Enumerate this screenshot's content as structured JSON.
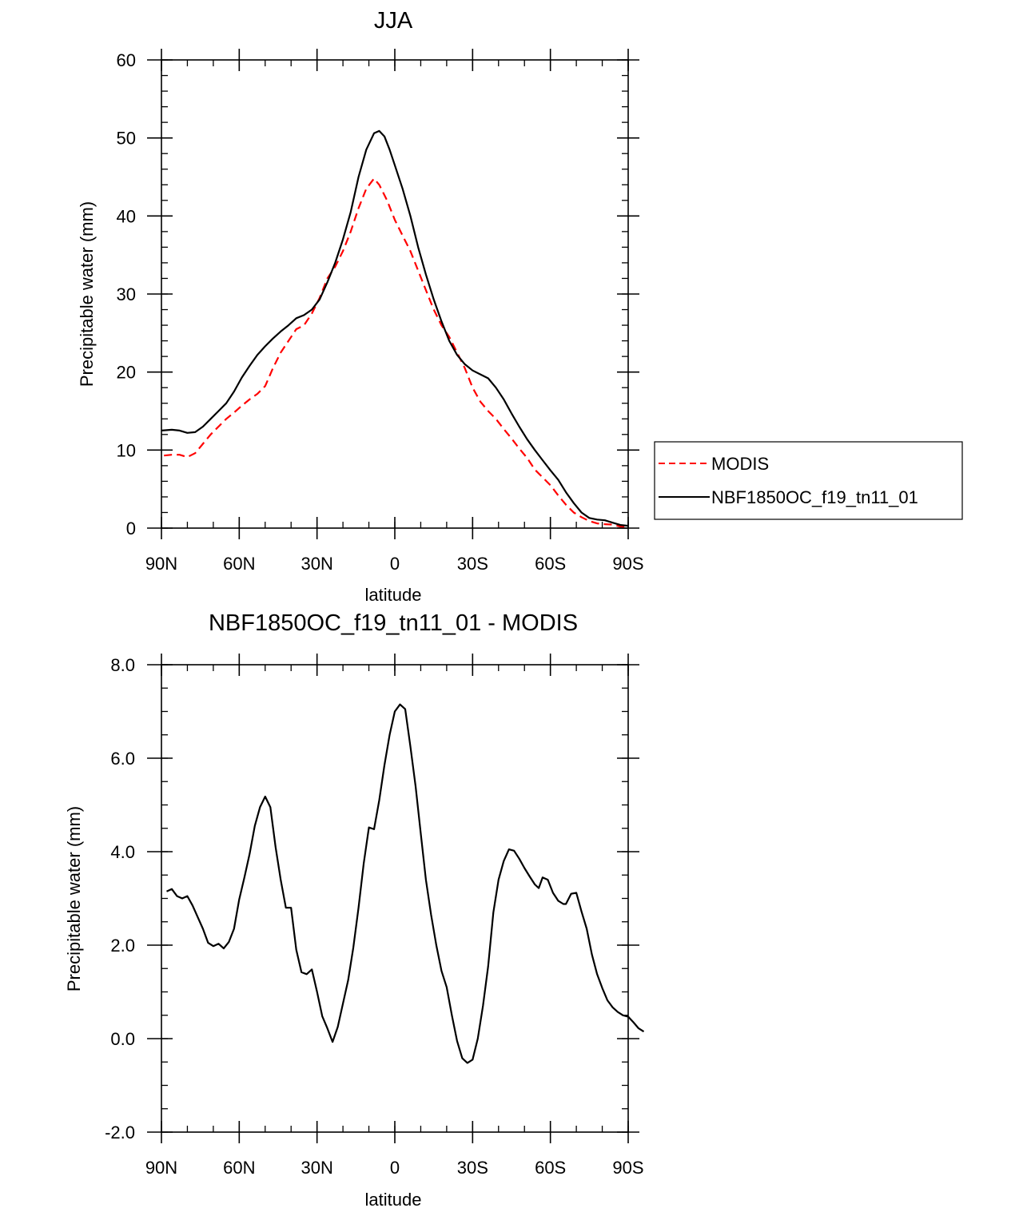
{
  "chart_data": [
    {
      "type": "line",
      "title": "JJA",
      "xlabel": "latitude",
      "ylabel": "Precipitable water (mm)",
      "xlim": [
        90,
        -90
      ],
      "ylim": [
        0,
        60
      ],
      "xticks": [
        {
          "value": 90,
          "label": "90N"
        },
        {
          "value": 60,
          "label": "60N"
        },
        {
          "value": 30,
          "label": "30N"
        },
        {
          "value": 0,
          "label": "0"
        },
        {
          "value": -30,
          "label": "30S"
        },
        {
          "value": -60,
          "label": "60S"
        },
        {
          "value": -90,
          "label": "90S"
        }
      ],
      "yticks": [
        {
          "value": 0,
          "label": "0"
        },
        {
          "value": 10,
          "label": "10"
        },
        {
          "value": 20,
          "label": "20"
        },
        {
          "value": 30,
          "label": "30"
        },
        {
          "value": 40,
          "label": "40"
        },
        {
          "value": 50,
          "label": "50"
        },
        {
          "value": 60,
          "label": "60"
        }
      ],
      "legend_position": "right",
      "series": [
        {
          "name": "MODIS",
          "color": "#ff0000",
          "style": "dashed",
          "points": [
            [
              89,
              9.3
            ],
            [
              86,
              9.4
            ],
            [
              83,
              9.4
            ],
            [
              80,
              9.1
            ],
            [
              77,
              9.6
            ],
            [
              74,
              10.8
            ],
            [
              71,
              12
            ],
            [
              68,
              13
            ],
            [
              65,
              14
            ],
            [
              62,
              14.8
            ],
            [
              59,
              15.7
            ],
            [
              56,
              16.5
            ],
            [
              53,
              17.2
            ],
            [
              50,
              18.2
            ],
            [
              47,
              20.5
            ],
            [
              44,
              22.5
            ],
            [
              41,
              24
            ],
            [
              38,
              25.5
            ],
            [
              35,
              26
            ],
            [
              32,
              27.5
            ],
            [
              29,
              29.5
            ],
            [
              26,
              32
            ],
            [
              23,
              33.5
            ],
            [
              20,
              35.5
            ],
            [
              17,
              38
            ],
            [
              14,
              41
            ],
            [
              11,
              43.5
            ],
            [
              8,
              44.8
            ],
            [
              6,
              44
            ],
            [
              3,
              42
            ],
            [
              0,
              39.5
            ],
            [
              -3,
              37.5
            ],
            [
              -6,
              35.5
            ],
            [
              -9,
              33
            ],
            [
              -12,
              30.5
            ],
            [
              -15,
              28
            ],
            [
              -18,
              26
            ],
            [
              -21,
              24.5
            ],
            [
              -24,
              22.5
            ],
            [
              -27,
              20.5
            ],
            [
              -30,
              18
            ],
            [
              -33,
              16.2
            ],
            [
              -36,
              15
            ],
            [
              -39,
              14
            ],
            [
              -42,
              12.7
            ],
            [
              -45,
              11.5
            ],
            [
              -48,
              10.2
            ],
            [
              -51,
              9
            ],
            [
              -54,
              7.5
            ],
            [
              -57,
              6.5
            ],
            [
              -60,
              5.5
            ],
            [
              -63,
              4.2
            ],
            [
              -66,
              3
            ],
            [
              -69,
              2
            ],
            [
              -72,
              1.4
            ],
            [
              -75,
              0.9
            ],
            [
              -78,
              0.6
            ],
            [
              -81,
              0.5
            ],
            [
              -84,
              0.45
            ],
            [
              -87,
              0.2
            ],
            [
              -90,
              0.05
            ]
          ]
        },
        {
          "name": "NBF1850OC_f19_tn11_01",
          "color": "#000000",
          "style": "solid",
          "points": [
            [
              90,
              12.5
            ],
            [
              86,
              12.6
            ],
            [
              83,
              12.5
            ],
            [
              80,
              12.2
            ],
            [
              77,
              12.3
            ],
            [
              74,
              13
            ],
            [
              71,
              14
            ],
            [
              68,
              15
            ],
            [
              65,
              16
            ],
            [
              62,
              17.5
            ],
            [
              59,
              19.3
            ],
            [
              56,
              20.8
            ],
            [
              53,
              22.2
            ],
            [
              50,
              23.3
            ],
            [
              47,
              24.3
            ],
            [
              44,
              25.2
            ],
            [
              41,
              26
            ],
            [
              38,
              26.9
            ],
            [
              35,
              27.3
            ],
            [
              32,
              28
            ],
            [
              29,
              29.3
            ],
            [
              26,
              31.5
            ],
            [
              23,
              34
            ],
            [
              20,
              37
            ],
            [
              17,
              40.5
            ],
            [
              14,
              45
            ],
            [
              11,
              48.5
            ],
            [
              8,
              50.6
            ],
            [
              6,
              50.9
            ],
            [
              4,
              50.2
            ],
            [
              2,
              48.5
            ],
            [
              0,
              46.5
            ],
            [
              -3,
              43.5
            ],
            [
              -6,
              40
            ],
            [
              -9,
              36
            ],
            [
              -12,
              32.5
            ],
            [
              -15,
              29.3
            ],
            [
              -18,
              26.5
            ],
            [
              -21,
              24
            ],
            [
              -24,
              22.2
            ],
            [
              -27,
              21
            ],
            [
              -30,
              20.2
            ],
            [
              -33,
              19.7
            ],
            [
              -36,
              19.2
            ],
            [
              -39,
              18
            ],
            [
              -42,
              16.5
            ],
            [
              -45,
              14.7
            ],
            [
              -48,
              13
            ],
            [
              -51,
              11.4
            ],
            [
              -54,
              10
            ],
            [
              -57,
              8.7
            ],
            [
              -60,
              7.4
            ],
            [
              -63,
              6.2
            ],
            [
              -66,
              4.6
            ],
            [
              -69,
              3.2
            ],
            [
              -72,
              2
            ],
            [
              -75,
              1.3
            ],
            [
              -78,
              1.1
            ],
            [
              -81,
              1
            ],
            [
              -84,
              0.7
            ],
            [
              -87,
              0.4
            ],
            [
              -90,
              0.3
            ]
          ]
        }
      ]
    },
    {
      "type": "line",
      "title": "NBF1850OC_f19_tn11_01 - MODIS",
      "xlabel": "latitude",
      "ylabel": "Precipitable water (mm)",
      "xlim": [
        90,
        -90
      ],
      "ylim": [
        -2,
        8
      ],
      "xticks": [
        {
          "value": 90,
          "label": "90N"
        },
        {
          "value": 60,
          "label": "60N"
        },
        {
          "value": 30,
          "label": "30N"
        },
        {
          "value": 0,
          "label": "0"
        },
        {
          "value": -30,
          "label": "30S"
        },
        {
          "value": -60,
          "label": "60S"
        },
        {
          "value": -90,
          "label": "90S"
        }
      ],
      "yticks": [
        {
          "value": -2,
          "label": "-2.0"
        },
        {
          "value": 0,
          "label": "0.0"
        },
        {
          "value": 2,
          "label": "2.0"
        },
        {
          "value": 4,
          "label": "4.0"
        },
        {
          "value": 6,
          "label": "6.0"
        },
        {
          "value": 8,
          "label": "8.0"
        }
      ],
      "series": [
        {
          "color": "#000000",
          "style": "solid",
          "points": [
            [
              88,
              3.15
            ],
            [
              86,
              3.2
            ],
            [
              84,
              3.05
            ],
            [
              82,
              3.0
            ],
            [
              80,
              3.05
            ],
            [
              78,
              2.85
            ],
            [
              76,
              2.6
            ],
            [
              74,
              2.35
            ],
            [
              72,
              2.05
            ],
            [
              70,
              1.98
            ],
            [
              68,
              2.03
            ],
            [
              66,
              1.93
            ],
            [
              64,
              2.07
            ],
            [
              62,
              2.35
            ],
            [
              60,
              2.98
            ],
            [
              58,
              3.45
            ],
            [
              56,
              3.95
            ],
            [
              54,
              4.55
            ],
            [
              52,
              4.95
            ],
            [
              50,
              5.18
            ],
            [
              48,
              4.95
            ],
            [
              46,
              4.1
            ],
            [
              44,
              3.4
            ],
            [
              42,
              2.8
            ],
            [
              40,
              2.8
            ],
            [
              38,
              1.9
            ],
            [
              36,
              1.42
            ],
            [
              34,
              1.38
            ],
            [
              32,
              1.48
            ],
            [
              30,
              1.0
            ],
            [
              28,
              0.48
            ],
            [
              26,
              0.22
            ],
            [
              24,
              -0.07
            ],
            [
              22,
              0.25
            ],
            [
              20,
              0.75
            ],
            [
              18,
              1.25
            ],
            [
              16,
              1.95
            ],
            [
              14,
              2.8
            ],
            [
              12,
              3.75
            ],
            [
              10,
              4.52
            ],
            [
              8,
              4.48
            ],
            [
              6,
              5.1
            ],
            [
              4,
              5.85
            ],
            [
              2,
              6.5
            ],
            [
              0,
              7.0
            ],
            [
              -2,
              7.15
            ],
            [
              -4,
              7.05
            ],
            [
              -6,
              6.25
            ],
            [
              -8,
              5.4
            ],
            [
              -10,
              4.4
            ],
            [
              -12,
              3.4
            ],
            [
              -14,
              2.65
            ],
            [
              -16,
              2.0
            ],
            [
              -18,
              1.45
            ],
            [
              -20,
              1.1
            ],
            [
              -22,
              0.5
            ],
            [
              -24,
              -0.05
            ],
            [
              -26,
              -0.42
            ],
            [
              -28,
              -0.52
            ],
            [
              -30,
              -0.45
            ],
            [
              -32,
              0.0
            ],
            [
              -34,
              0.7
            ],
            [
              -36,
              1.55
            ],
            [
              -38,
              2.7
            ],
            [
              -40,
              3.4
            ],
            [
              -42,
              3.8
            ],
            [
              -44,
              4.05
            ],
            [
              -46,
              4.02
            ],
            [
              -48,
              3.85
            ],
            [
              -50,
              3.65
            ],
            [
              -52,
              3.47
            ],
            [
              -54,
              3.3
            ],
            [
              -55.5,
              3.22
            ],
            [
              -57,
              3.45
            ],
            [
              -59,
              3.4
            ],
            [
              -61,
              3.12
            ],
            [
              -63,
              2.95
            ],
            [
              -65,
              2.88
            ],
            [
              -66,
              2.88
            ],
            [
              -68,
              3.1
            ],
            [
              -70,
              3.12
            ],
            [
              -72,
              2.72
            ],
            [
              -74,
              2.35
            ],
            [
              -76,
              1.8
            ],
            [
              -78,
              1.38
            ],
            [
              -80,
              1.08
            ],
            [
              -82,
              0.82
            ],
            [
              -84,
              0.67
            ],
            [
              -86,
              0.57
            ],
            [
              -88,
              0.5
            ],
            [
              -90,
              0.47
            ],
            [
              -92,
              0.35
            ],
            [
              -94,
              0.22
            ],
            [
              -96,
              0.15
            ]
          ]
        }
      ]
    }
  ]
}
